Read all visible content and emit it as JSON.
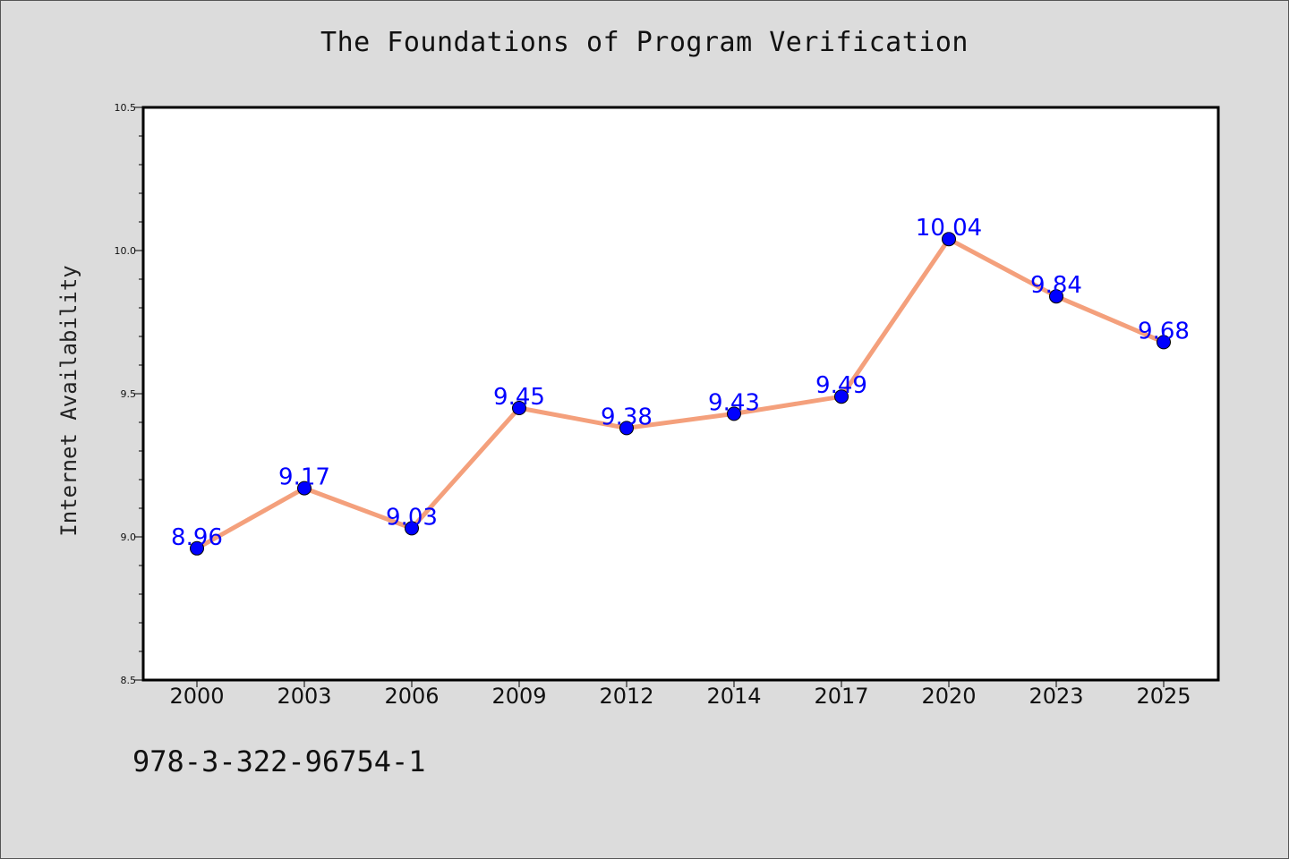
{
  "chart_data": {
    "type": "line",
    "title": "The Foundations of Program Verification",
    "xlabel": "",
    "ylabel": "Internet Availability",
    "categories": [
      "2000",
      "2003",
      "2006",
      "2009",
      "2012",
      "2014",
      "2017",
      "2020",
      "2023",
      "2025"
    ],
    "series": [
      {
        "values": [
          8.96,
          9.17,
          9.03,
          9.45,
          9.38,
          9.43,
          9.49,
          10.04,
          9.84,
          9.68
        ]
      }
    ],
    "data_labels": [
      "8.96",
      "9.17",
      "9.03",
      "9.45",
      "9.38",
      "9.43",
      "9.49",
      "10.04",
      "9.84",
      "9.68"
    ],
    "ylim": [
      8.5,
      10.5
    ],
    "yticks": [
      "8.5",
      "9.0",
      "9.5",
      "10.0",
      "10.5"
    ],
    "grid": false,
    "colors": {
      "line": "#f4a07c",
      "marker": "#0000ff",
      "data_label": "#0000ff",
      "background": "#dcdcdc",
      "plot_area": "#ffffff"
    }
  },
  "footer": {
    "code": "978-3-322-96754-1"
  }
}
